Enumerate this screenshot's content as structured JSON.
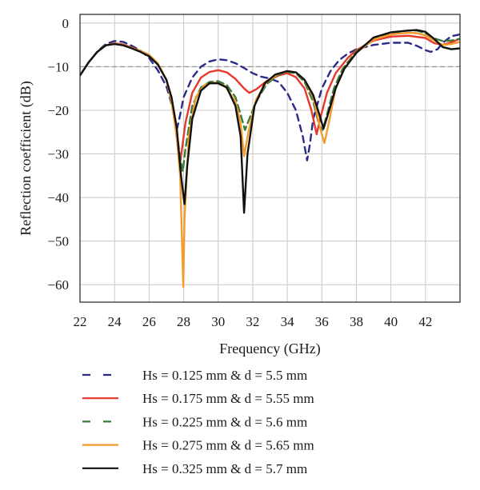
{
  "chart_data": {
    "type": "line",
    "title": "",
    "xlabel": "Frequency (GHz)",
    "ylabel": "Reflection coefficient (dB)",
    "xlim": [
      22,
      44
    ],
    "ylim": [
      -64,
      2
    ],
    "xticks": [
      22,
      24,
      26,
      28,
      30,
      32,
      34,
      36,
      38,
      40,
      42
    ],
    "yticks": [
      0,
      -10,
      -20,
      -30,
      -40,
      -50,
      -60
    ],
    "grid": true,
    "legend_position": "below",
    "reference_line": {
      "y": -10,
      "color": "#999999",
      "style": "dashed"
    },
    "series": [
      {
        "name": "Hs = 0.125 mm & d = 5.5 mm",
        "color": "#2a2a8a",
        "dash": "8,6",
        "points": [
          [
            22,
            -12
          ],
          [
            22.5,
            -9
          ],
          [
            23,
            -6.5
          ],
          [
            23.5,
            -4.8
          ],
          [
            24,
            -4.1
          ],
          [
            24.5,
            -4.3
          ],
          [
            25,
            -5.2
          ],
          [
            25.5,
            -6.3
          ],
          [
            26,
            -8
          ],
          [
            26.5,
            -10.8
          ],
          [
            27,
            -14.5
          ],
          [
            27.3,
            -18.5
          ],
          [
            27.5,
            -22.5
          ],
          [
            27.6,
            -24.5
          ],
          [
            27.75,
            -22
          ],
          [
            28,
            -17
          ],
          [
            28.5,
            -12.5
          ],
          [
            29,
            -10
          ],
          [
            29.5,
            -8.8
          ],
          [
            30,
            -8.3
          ],
          [
            30.5,
            -8.5
          ],
          [
            31,
            -9.2
          ],
          [
            31.5,
            -10.3
          ],
          [
            32,
            -11.5
          ],
          [
            32.5,
            -12.3
          ],
          [
            33,
            -12.7
          ],
          [
            33.5,
            -13.5
          ],
          [
            34,
            -16
          ],
          [
            34.5,
            -20
          ],
          [
            34.9,
            -26
          ],
          [
            35.15,
            -31.5
          ],
          [
            35.3,
            -28
          ],
          [
            35.5,
            -22
          ],
          [
            36,
            -15
          ],
          [
            36.5,
            -11
          ],
          [
            37,
            -8.5
          ],
          [
            37.5,
            -7
          ],
          [
            38,
            -6
          ],
          [
            39,
            -5
          ],
          [
            40,
            -4.5
          ],
          [
            41,
            -4.5
          ],
          [
            41.5,
            -5.2
          ],
          [
            42,
            -6.2
          ],
          [
            42.3,
            -6.6
          ],
          [
            42.7,
            -6
          ],
          [
            43,
            -4.5
          ],
          [
            43.5,
            -3
          ],
          [
            44,
            -2.6
          ]
        ]
      },
      {
        "name": "Hs = 0.175 mm & d = 5.55 mm",
        "color": "#e8372b",
        "dash": "",
        "points": [
          [
            22,
            -12
          ],
          [
            22.5,
            -9
          ],
          [
            23,
            -6.6
          ],
          [
            23.5,
            -5.1
          ],
          [
            24,
            -4.6
          ],
          [
            24.5,
            -4.9
          ],
          [
            25,
            -5.6
          ],
          [
            25.5,
            -6.4
          ],
          [
            26,
            -7.4
          ],
          [
            26.5,
            -9.5
          ],
          [
            27,
            -13
          ],
          [
            27.3,
            -17.5
          ],
          [
            27.5,
            -23
          ],
          [
            27.7,
            -29.5
          ],
          [
            27.8,
            -32
          ],
          [
            27.9,
            -29
          ],
          [
            28.1,
            -23
          ],
          [
            28.5,
            -16
          ],
          [
            29,
            -12.5
          ],
          [
            29.5,
            -11.2
          ],
          [
            30,
            -10.8
          ],
          [
            30.5,
            -11.3
          ],
          [
            31,
            -12.8
          ],
          [
            31.5,
            -15
          ],
          [
            31.8,
            -16
          ],
          [
            32.2,
            -15.2
          ],
          [
            32.8,
            -13.3
          ],
          [
            33.5,
            -12
          ],
          [
            34,
            -11.5
          ],
          [
            34.5,
            -12.4
          ],
          [
            35,
            -15
          ],
          [
            35.4,
            -20
          ],
          [
            35.7,
            -25.5
          ],
          [
            35.9,
            -22
          ],
          [
            36.3,
            -16
          ],
          [
            36.8,
            -11.5
          ],
          [
            37.5,
            -8
          ],
          [
            38,
            -6.2
          ],
          [
            39,
            -4
          ],
          [
            40,
            -3.1
          ],
          [
            41,
            -2.9
          ],
          [
            42,
            -3.4
          ],
          [
            42.5,
            -4.6
          ],
          [
            43,
            -5
          ],
          [
            43.5,
            -4.4
          ],
          [
            44,
            -3.6
          ]
        ]
      },
      {
        "name": "Hs = 0.225 mm & d = 5.6 mm",
        "color": "#3a7a3a",
        "dash": "9,5",
        "points": [
          [
            22,
            -12
          ],
          [
            22.5,
            -9
          ],
          [
            23,
            -6.6
          ],
          [
            23.5,
            -5.1
          ],
          [
            24,
            -4.7
          ],
          [
            24.5,
            -5
          ],
          [
            25,
            -5.7
          ],
          [
            25.5,
            -6.4
          ],
          [
            26,
            -7.3
          ],
          [
            26.5,
            -9.2
          ],
          [
            27,
            -13
          ],
          [
            27.3,
            -17.5
          ],
          [
            27.6,
            -25
          ],
          [
            27.8,
            -31
          ],
          [
            27.95,
            -34
          ],
          [
            28.1,
            -29
          ],
          [
            28.5,
            -19
          ],
          [
            29,
            -14.8
          ],
          [
            29.5,
            -13.5
          ],
          [
            30,
            -13.3
          ],
          [
            30.5,
            -14.2
          ],
          [
            31,
            -17
          ],
          [
            31.3,
            -21
          ],
          [
            31.55,
            -24.5
          ],
          [
            31.8,
            -22
          ],
          [
            32.2,
            -18
          ],
          [
            32.8,
            -14
          ],
          [
            33.5,
            -11.8
          ],
          [
            34,
            -11.2
          ],
          [
            34.5,
            -11.5
          ],
          [
            35,
            -13.5
          ],
          [
            35.5,
            -18
          ],
          [
            35.85,
            -23.5
          ],
          [
            36.05,
            -24.5
          ],
          [
            36.3,
            -21
          ],
          [
            36.7,
            -15
          ],
          [
            37.2,
            -10.5
          ],
          [
            38,
            -6.5
          ],
          [
            39,
            -3.5
          ],
          [
            40,
            -2.2
          ],
          [
            41,
            -1.7
          ],
          [
            41.5,
            -1.7
          ],
          [
            42,
            -2.3
          ],
          [
            42.5,
            -3.5
          ],
          [
            43,
            -4.1
          ],
          [
            43.5,
            -4
          ],
          [
            44,
            -3.6
          ]
        ]
      },
      {
        "name": "Hs = 0.275 mm & d = 5.65 mm",
        "color": "#f29c2c",
        "dash": "",
        "points": [
          [
            22,
            -12
          ],
          [
            22.5,
            -9
          ],
          [
            23,
            -6.6
          ],
          [
            23.5,
            -5.1
          ],
          [
            24,
            -4.7
          ],
          [
            24.5,
            -5
          ],
          [
            25,
            -5.7
          ],
          [
            25.5,
            -6.4
          ],
          [
            26,
            -7.3
          ],
          [
            26.5,
            -9.2
          ],
          [
            27,
            -13
          ],
          [
            27.3,
            -18
          ],
          [
            27.6,
            -26
          ],
          [
            27.8,
            -35
          ],
          [
            27.92,
            -52
          ],
          [
            27.98,
            -60.5
          ],
          [
            28.05,
            -45
          ],
          [
            28.3,
            -26
          ],
          [
            28.7,
            -17
          ],
          [
            29.2,
            -14.2
          ],
          [
            29.8,
            -13.6
          ],
          [
            30.4,
            -14.4
          ],
          [
            31,
            -18
          ],
          [
            31.3,
            -23
          ],
          [
            31.5,
            -30.5
          ],
          [
            31.75,
            -25
          ],
          [
            32.2,
            -17.5
          ],
          [
            32.8,
            -13.5
          ],
          [
            33.5,
            -11.6
          ],
          [
            34,
            -11
          ],
          [
            34.5,
            -11.3
          ],
          [
            35,
            -13
          ],
          [
            35.5,
            -17
          ],
          [
            35.9,
            -24
          ],
          [
            36.15,
            -27.5
          ],
          [
            36.4,
            -23
          ],
          [
            36.8,
            -15
          ],
          [
            37.3,
            -10.5
          ],
          [
            38,
            -6.8
          ],
          [
            39,
            -3.8
          ],
          [
            40,
            -2.6
          ],
          [
            41,
            -2.2
          ],
          [
            41.5,
            -2.3
          ],
          [
            42,
            -2.8
          ],
          [
            42.5,
            -4
          ],
          [
            43,
            -5
          ],
          [
            43.5,
            -4.8
          ],
          [
            44,
            -4.3
          ]
        ]
      },
      {
        "name": "Hs = 0.325 mm & d = 5.7 mm",
        "color": "#111111",
        "dash": "",
        "points": [
          [
            22,
            -12
          ],
          [
            22.5,
            -9
          ],
          [
            23,
            -6.6
          ],
          [
            23.5,
            -5.1
          ],
          [
            24,
            -4.8
          ],
          [
            24.5,
            -5.1
          ],
          [
            25,
            -5.8
          ],
          [
            25.5,
            -6.6
          ],
          [
            26,
            -7.6
          ],
          [
            26.5,
            -9.5
          ],
          [
            27,
            -13
          ],
          [
            27.3,
            -17
          ],
          [
            27.6,
            -24
          ],
          [
            27.85,
            -35
          ],
          [
            28.05,
            -41.5
          ],
          [
            28.2,
            -33
          ],
          [
            28.5,
            -22
          ],
          [
            29,
            -15.5
          ],
          [
            29.5,
            -13.8
          ],
          [
            30,
            -13.8
          ],
          [
            30.5,
            -14.8
          ],
          [
            31,
            -19
          ],
          [
            31.3,
            -26
          ],
          [
            31.5,
            -43.5
          ],
          [
            31.7,
            -30
          ],
          [
            32.1,
            -19
          ],
          [
            32.7,
            -13.8
          ],
          [
            33.3,
            -11.8
          ],
          [
            34,
            -11
          ],
          [
            34.5,
            -11.3
          ],
          [
            35,
            -13
          ],
          [
            35.5,
            -16.5
          ],
          [
            35.9,
            -21.5
          ],
          [
            36.1,
            -24.2
          ],
          [
            36.35,
            -21
          ],
          [
            36.8,
            -15
          ],
          [
            37.3,
            -10.5
          ],
          [
            38,
            -6.8
          ],
          [
            39,
            -3.3
          ],
          [
            40,
            -2.1
          ],
          [
            41,
            -1.7
          ],
          [
            41.5,
            -1.6
          ],
          [
            42,
            -2
          ],
          [
            42.5,
            -3.6
          ],
          [
            43,
            -5.5
          ],
          [
            43.5,
            -6
          ],
          [
            44,
            -5.8
          ]
        ]
      }
    ]
  }
}
